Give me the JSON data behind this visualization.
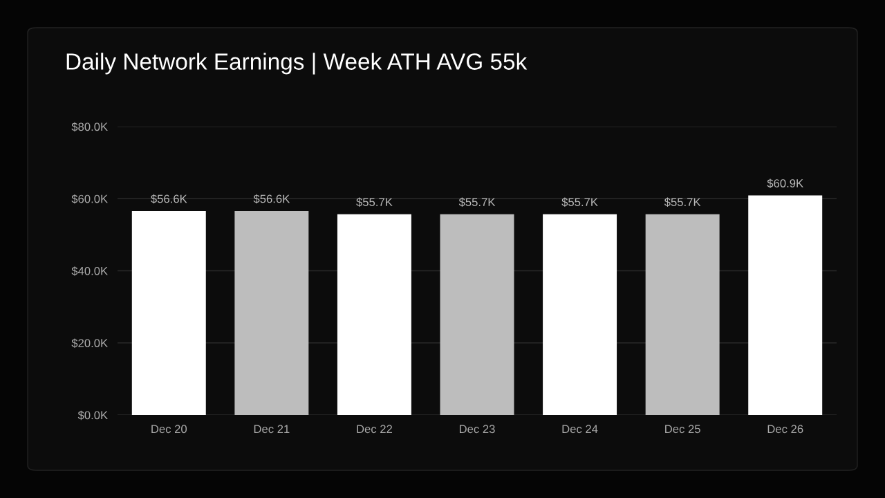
{
  "chart_data": {
    "type": "bar",
    "title": "Daily Network Earnings | Week ATH AVG 55k",
    "categories": [
      "Dec 20",
      "Dec 21",
      "Dec 22",
      "Dec 23",
      "Dec 24",
      "Dec 25",
      "Dec 26"
    ],
    "values": [
      56.6,
      56.6,
      55.7,
      55.7,
      55.7,
      55.7,
      60.9
    ],
    "colors": [
      "#ffffff",
      "#bdbdbd",
      "#ffffff",
      "#bdbdbd",
      "#ffffff",
      "#bdbdbd",
      "#ffffff"
    ],
    "value_labels": [
      "$56.6K",
      "$56.6K",
      "$55.7K",
      "$55.7K",
      "$55.7K",
      "$55.7K",
      "$60.9K"
    ],
    "ylim": [
      0,
      80
    ],
    "yticks": [
      {
        "value": 0,
        "label": "$0.0K"
      },
      {
        "value": 20,
        "label": "$20.0K"
      },
      {
        "value": 40,
        "label": "$40.0K"
      },
      {
        "value": 60,
        "label": "$60.0K"
      },
      {
        "value": 80,
        "label": "$80.0K"
      }
    ],
    "grid": "y"
  }
}
